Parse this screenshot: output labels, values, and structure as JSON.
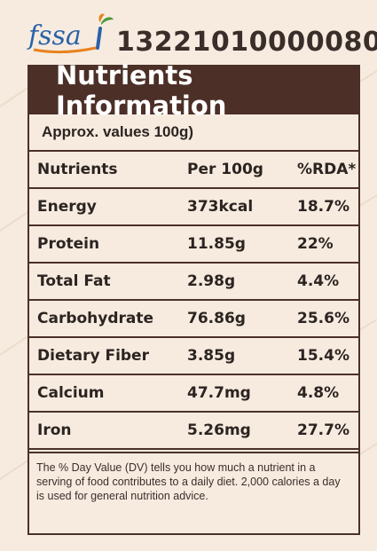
{
  "header": {
    "logo_text": "fssai",
    "license_number": "13221010000080"
  },
  "panel": {
    "title": "Nutrients Information",
    "approx_label": "Approx. values 100g)",
    "columns": [
      "Nutrients",
      "Per 100g",
      "%RDA*"
    ],
    "rows": [
      {
        "name": "Energy",
        "per100g": "373kcal",
        "rda": "18.7%"
      },
      {
        "name": "Protein",
        "per100g": "11.85g",
        "rda": "22%"
      },
      {
        "name": "Total Fat",
        "per100g": "2.98g",
        "rda": "4.4%"
      },
      {
        "name": "Carbohydrate",
        "per100g": "76.86g",
        "rda": "25.6%"
      },
      {
        "name": "Dietary Fiber",
        "per100g": "3.85g",
        "rda": "15.4%"
      },
      {
        "name": "Calcium",
        "per100g": "47.7mg",
        "rda": "4.8%"
      },
      {
        "name": "Iron",
        "per100g": "5.26mg",
        "rda": "27.7%"
      }
    ],
    "footnote": "The % Day Value (DV) tells you how much a nutrient in a serving of  food contributes to a daily diet. 2,000 calories a day is used for general nutrition advice."
  },
  "colors": {
    "background": "#f7ebe0",
    "title_bar": "#4c2f27",
    "logo_blue": "#2a62a8",
    "logo_orange": "#e8821e",
    "logo_green": "#4a9a3a"
  }
}
